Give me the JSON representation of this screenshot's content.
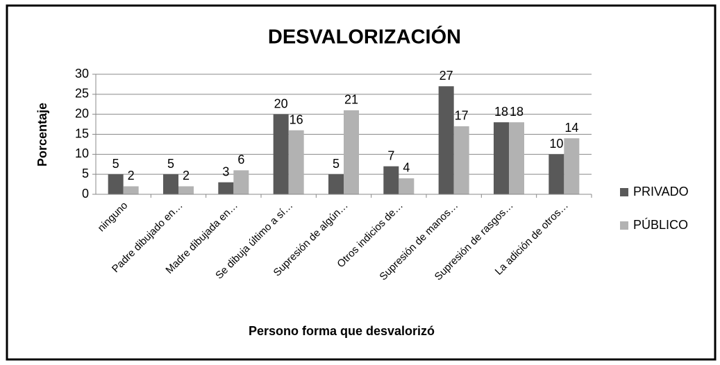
{
  "chart_data": {
    "type": "bar",
    "title": "DESVALORIZACIÓN",
    "x_label": "Persono forma que desvalorizó",
    "y_label": "Porcentaje",
    "categories": [
      "ninguno",
      "Padre dibujado en…",
      "Madre dibujada en…",
      "Se dibuja último a sí…",
      "Supresión de algún…",
      "Otros indicios de…",
      "Supresión de manos…",
      "Supresión de rasgos…",
      "La adición de otros…"
    ],
    "series": [
      {
        "name": "PRIVADO",
        "color": "#595959",
        "values": [
          5,
          5,
          3,
          20,
          5,
          7,
          27,
          18,
          10
        ]
      },
      {
        "name": "PÚBLICO",
        "color": "#b2b2b2",
        "values": [
          2,
          2,
          6,
          16,
          21,
          4,
          17,
          18,
          14
        ]
      }
    ],
    "ylim": [
      0,
      30
    ],
    "yticks": [
      0,
      5,
      10,
      15,
      20,
      25,
      30
    ],
    "grid": true,
    "legend": "right"
  }
}
